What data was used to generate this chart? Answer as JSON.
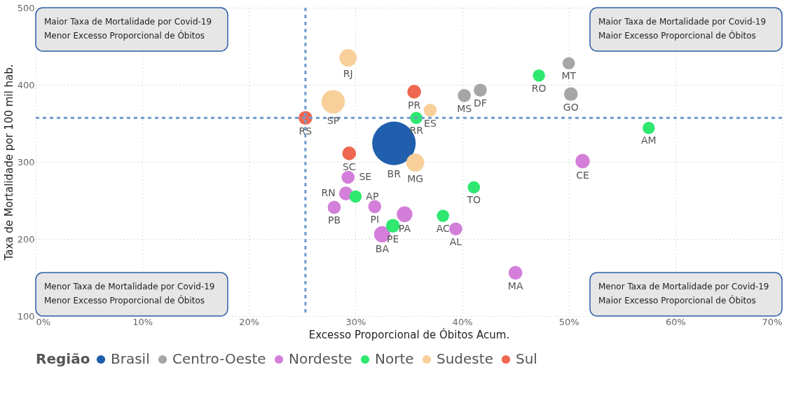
{
  "chart_data": {
    "type": "bubble",
    "xlabel": "Excesso Proporcional de Óbitos Acum.",
    "ylabel": "Taxa de Mortalidade por 100 mil hab.",
    "legend_title": "Região",
    "xlim": [
      0,
      70
    ],
    "ylim": [
      100,
      500
    ],
    "xticks": [
      {
        "value": 0,
        "label": "0%"
      },
      {
        "value": 10,
        "label": "10%"
      },
      {
        "value": 20,
        "label": "20%"
      },
      {
        "value": 30,
        "label": "30%"
      },
      {
        "value": 40,
        "label": "40%"
      },
      {
        "value": 50,
        "label": "50%"
      },
      {
        "value": 60,
        "label": "60%"
      },
      {
        "value": 70,
        "label": "70%"
      }
    ],
    "yticks": [
      100,
      200,
      300,
      400,
      500
    ],
    "grid": true,
    "legend": "bottom",
    "series": [
      {
        "name": "Brasil",
        "color": "#1f5fad",
        "x": [
          33.6
        ],
        "values": [
          324
        ],
        "sizes": [
          1
        ],
        "value_labels": [
          "BR"
        ]
      },
      {
        "name": "Centro-Oeste",
        "color": "#a6a6a6",
        "x": [
          40.2,
          41.7,
          50.0,
          50.2
        ],
        "values": [
          386,
          393,
          428,
          388
        ],
        "sizes": [
          0.09,
          0.09,
          0.08,
          0.1
        ],
        "value_labels": [
          "MS",
          "DF",
          "MT",
          "GO"
        ]
      },
      {
        "name": "Nordeste",
        "color": "#d37fd9",
        "x": [
          29.3,
          29.1,
          28.0,
          31.8,
          34.6,
          32.5,
          39.4,
          51.3,
          45.0
        ],
        "values": [
          280,
          259,
          241,
          242,
          232,
          206,
          213,
          301,
          156
        ],
        "sizes": [
          0.09,
          0.1,
          0.09,
          0.09,
          0.13,
          0.14,
          0.09,
          0.11,
          0.1
        ],
        "value_labels": [
          "SE",
          "RN",
          "PB",
          "PI",
          "PA",
          "BA",
          "AL",
          "CE",
          "MA"
        ]
      },
      {
        "name": "Norte",
        "color": "#2ee86f",
        "x": [
          35.7,
          30.0,
          33.5,
          38.2,
          41.1,
          47.2,
          57.5
        ],
        "values": [
          357,
          255,
          217,
          230,
          267,
          412,
          344
        ],
        "sizes": [
          0.08,
          0.08,
          0.1,
          0.08,
          0.08,
          0.08,
          0.08
        ],
        "value_labels": [
          "RR",
          "AP",
          "PE",
          "AC",
          "TO",
          "RO",
          "AM"
        ]
      },
      {
        "name": "Sudeste",
        "color": "#f8cf9a",
        "x": [
          29.3,
          27.9,
          37.0,
          35.6
        ],
        "values": [
          435,
          378,
          367,
          299
        ],
        "sizes": [
          0.16,
          0.29,
          0.09,
          0.17
        ],
        "value_labels": [
          "RJ",
          "SP",
          "ES",
          "MG"
        ]
      },
      {
        "name": "Sul",
        "color": "#ef6750",
        "x": [
          25.3,
          35.5,
          29.4
        ],
        "values": [
          357,
          391,
          311
        ],
        "sizes": [
          0.1,
          0.1,
          0.1
        ],
        "value_labels": [
          "RS",
          "PR",
          "SC"
        ]
      }
    ],
    "ref_lines": [
      {
        "axis": "x",
        "value": 25.3,
        "color": "#6f9ad0",
        "line_style": "dashed"
      },
      {
        "axis": "y",
        "value": 357,
        "color": "#6f9ad0",
        "line_style": "dashed"
      }
    ],
    "annotations": [
      "Maior Taxa de Mortalidade por Covid-19",
      "Menor Excesso Proporcional de Óbitos",
      "Maior Taxa de Mortalidade por Covid-19",
      "Maior Excesso Proporcional de Óbitos",
      "Menor Taxa de Mortalidade por Covid-19",
      "Menor Excesso Proporcional de Óbitos",
      "Menor Taxa de Mortalidade por Covid-19",
      "Maior Excesso Proporcional de Óbitos"
    ]
  }
}
